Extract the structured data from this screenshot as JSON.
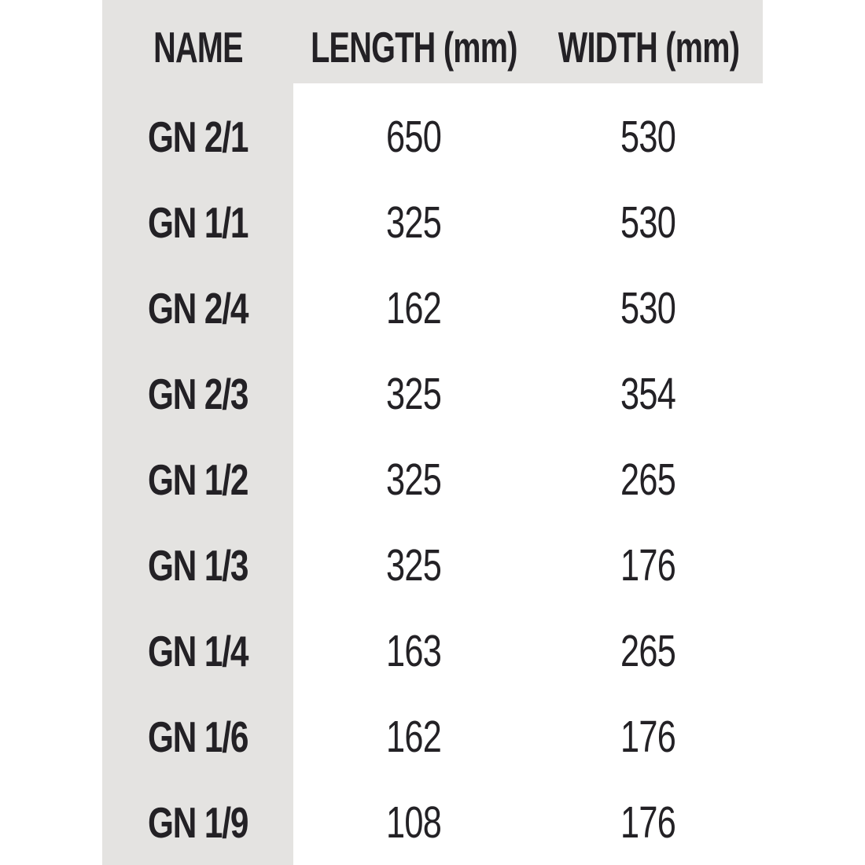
{
  "chart_data": {
    "type": "table",
    "columns": [
      "NAME",
      "LENGTH (mm)",
      "WIDTH (mm)"
    ],
    "rows": [
      [
        "GN 2/1",
        "650",
        "530"
      ],
      [
        "GN 1/1",
        "325",
        "530"
      ],
      [
        "GN 2/4",
        "162",
        "530"
      ],
      [
        "GN 2/3",
        "325",
        "354"
      ],
      [
        "GN 1/2",
        "325",
        "265"
      ],
      [
        "GN 1/3",
        "325",
        "176"
      ],
      [
        "GN 1/4",
        "163",
        "265"
      ],
      [
        "GN 1/6",
        "162",
        "176"
      ],
      [
        "GN 1/9",
        "108",
        "176"
      ]
    ]
  },
  "colors": {
    "band_bg": "#e4e3e1",
    "text": "#232125",
    "page_bg": "#ffffff"
  }
}
